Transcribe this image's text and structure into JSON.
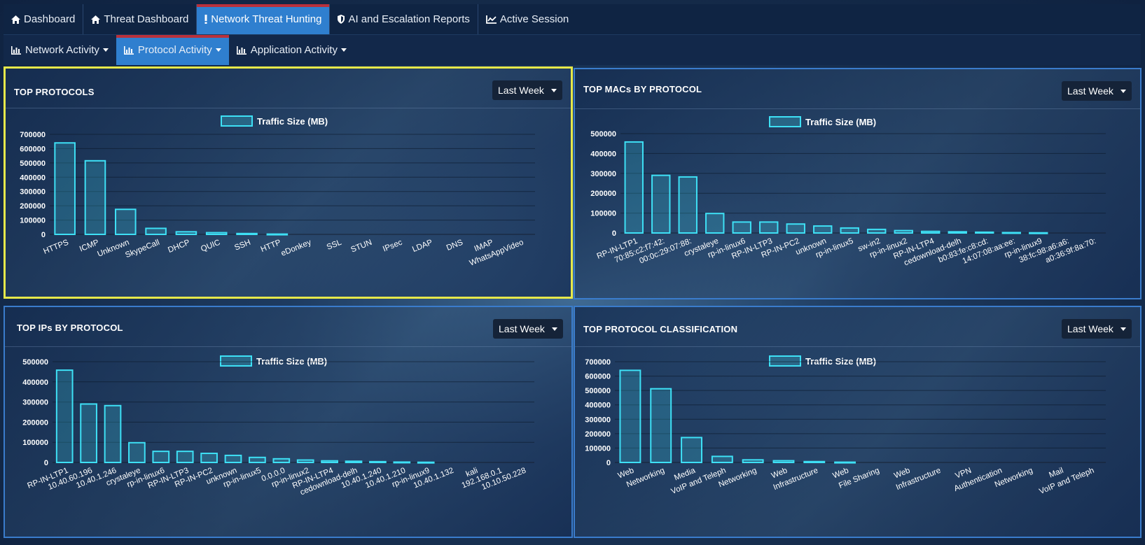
{
  "nav": {
    "tabs": [
      {
        "label": "Dashboard",
        "icon": "home-icon"
      },
      {
        "label": "Threat Dashboard",
        "icon": "home-icon"
      },
      {
        "label": "Network Threat Hunting",
        "icon": "exclamation-icon"
      },
      {
        "label": "AI and Escalation Reports",
        "icon": "shield-icon"
      },
      {
        "label": "Active Session",
        "icon": "line-chart-icon"
      }
    ],
    "active_tab": "Network Threat Hunting"
  },
  "subnav": {
    "tabs": [
      {
        "label": "Network Activity",
        "icon": "bar-chart-icon"
      },
      {
        "label": "Protocol Activity",
        "icon": "bar-chart-icon"
      },
      {
        "label": "Application Activity",
        "icon": "bar-chart-icon"
      }
    ],
    "active_tab": "Protocol Activity"
  },
  "panels": [
    {
      "title": "TOP PROTOCOLS",
      "period": "Last Week"
    },
    {
      "title": "TOP MACs BY PROTOCOL",
      "period": "Last Week"
    },
    {
      "title": "TOP IPs BY PROTOCOL",
      "period": "Last Week"
    },
    {
      "title": "TOP PROTOCOL CLASSIFICATION",
      "period": "Last Week"
    }
  ],
  "colors": {
    "accent": "#2f7fcf",
    "bar_stroke": "#3ee0f5",
    "highlight_border": "#e6e84a",
    "active_marker": "#b9303b"
  },
  "chart_data": [
    {
      "type": "bar",
      "legend": "Traffic Size (MB)",
      "categories": [
        "HTTPS",
        "ICMP",
        "Unknown",
        "SkypeCall",
        "DHCP",
        "QUIC",
        "SSH",
        "HTTP",
        "eDonkey",
        "SSL",
        "STUN",
        "IPsec",
        "LDAP",
        "DNS",
        "IMAP",
        "WhatsAppVideo"
      ],
      "series": [
        {
          "name": "Traffic Size (MB)",
          "values": [
            640000,
            515000,
            175000,
            42000,
            18000,
            12000,
            6000,
            2000,
            0,
            0,
            0,
            0,
            0,
            0,
            0,
            0
          ]
        }
      ],
      "yticks": [
        "700000",
        "600000",
        "500000",
        "400000",
        "300000",
        "200000",
        "100000",
        "0"
      ],
      "ylim": [
        0,
        700000
      ]
    },
    {
      "type": "bar",
      "legend": "Traffic Size (MB)",
      "categories": [
        "RP-IN-LTP1",
        "70:85:c2:f7:42:",
        "00:0c:29:07:88:",
        "crystaleye",
        "rp-in-linux6",
        "RP-IN-LTP3",
        "RP-IN-PC2",
        "unknown",
        "rp-in-linux5",
        "sw-in2",
        "rp-in-linux2",
        "RP-IN-LTP4",
        "cedownload-delh",
        "b0:83:fe:c8:cd:",
        "14:07:08:aa:ee:",
        "rp-in-linux9",
        "38:fc:98:a6:a6:",
        "a0:36:9f:8a:70:"
      ],
      "series": [
        {
          "name": "Traffic Size (MB)",
          "values": [
            458000,
            290000,
            282000,
            98000,
            55000,
            55000,
            45000,
            35000,
            25000,
            18000,
            12000,
            8000,
            6000,
            4000,
            2000,
            1000,
            0,
            0
          ]
        }
      ],
      "yticks": [
        "500000",
        "400000",
        "300000",
        "200000",
        "100000",
        "0"
      ],
      "ylim": [
        0,
        500000
      ]
    },
    {
      "type": "bar",
      "legend": "Traffic Size (MB)",
      "categories": [
        "RP-IN-LTP1",
        "10.40.60.196",
        "10.40.1.246",
        "crystaleye",
        "rp-in-linux6",
        "RP-IN-LTP3",
        "RP-IN-PC2",
        "unknown",
        "rp-in-linux5",
        "0.0.0.0",
        "rp-in-linux2",
        "RP-IN-LTP4",
        "cedownload-delh",
        "10.40.1.240",
        "10.40.1.210",
        "rp-in-linux9",
        "10.40.1.132",
        "kali",
        "192.168.0.1",
        "10.10.50.228"
      ],
      "series": [
        {
          "name": "Traffic Size (MB)",
          "values": [
            458000,
            290000,
            282000,
            98000,
            55000,
            55000,
            45000,
            35000,
            25000,
            18000,
            12000,
            8000,
            6000,
            4000,
            2000,
            1000,
            0,
            0,
            0,
            0
          ]
        }
      ],
      "yticks": [
        "500000",
        "400000",
        "300000",
        "200000",
        "100000",
        "0"
      ],
      "ylim": [
        0,
        500000
      ]
    },
    {
      "type": "bar",
      "legend": "Traffic Size (MB)",
      "categories": [
        "Web",
        "Networking",
        "Media",
        "VoIP and Teleph",
        "Networking",
        "Web",
        "Infrastructure",
        "Web",
        "File Sharing",
        "Web",
        "Infrastructure",
        "VPN",
        "Authentication",
        "Networking",
        "Mail",
        "VoIP and Teleph"
      ],
      "series": [
        {
          "name": "Traffic Size (MB)",
          "values": [
            640000,
            512000,
            173000,
            42000,
            18000,
            12000,
            6000,
            2000,
            0,
            0,
            0,
            0,
            0,
            0,
            0,
            0
          ]
        }
      ],
      "yticks": [
        "700000",
        "600000",
        "500000",
        "400000",
        "300000",
        "200000",
        "100000",
        "0"
      ],
      "ylim": [
        0,
        700000
      ]
    }
  ]
}
